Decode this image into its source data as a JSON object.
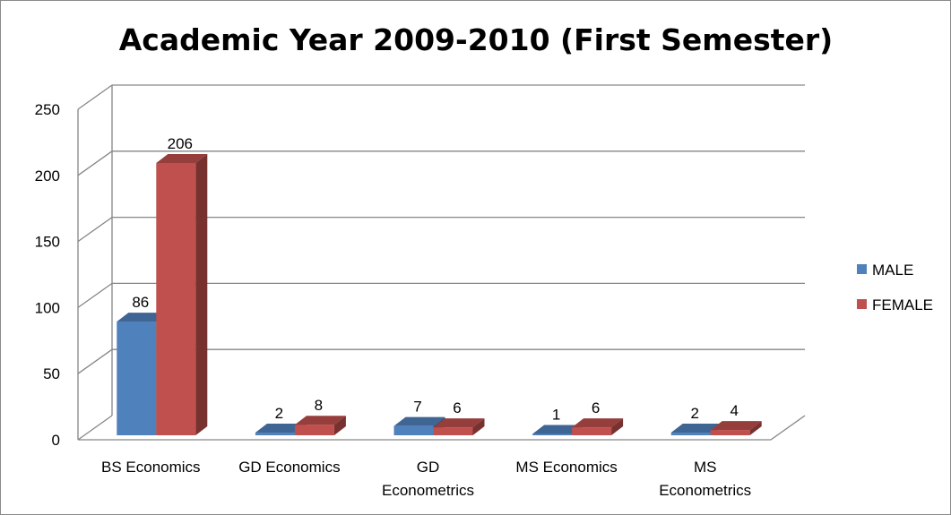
{
  "chart_data": {
    "type": "bar",
    "title": "Academic Year 2009-2010 (First Semester)",
    "categories": [
      [
        "BS Economics"
      ],
      [
        "GD Economics"
      ],
      [
        "GD",
        "Econometrics"
      ],
      [
        "MS Economics"
      ],
      [
        "MS",
        "Econometrics"
      ]
    ],
    "series": [
      {
        "name": "MALE",
        "values": [
          86,
          2,
          7,
          1,
          2
        ],
        "color": "#4F81BD"
      },
      {
        "name": "FEMALE",
        "values": [
          206,
          8,
          6,
          6,
          4
        ],
        "color": "#C0504D"
      }
    ],
    "ylim": [
      0,
      250
    ],
    "yticks": [
      0,
      50,
      100,
      150,
      200,
      250
    ],
    "grid": true,
    "legend_position": "right",
    "style": "3d-clustered-column"
  }
}
